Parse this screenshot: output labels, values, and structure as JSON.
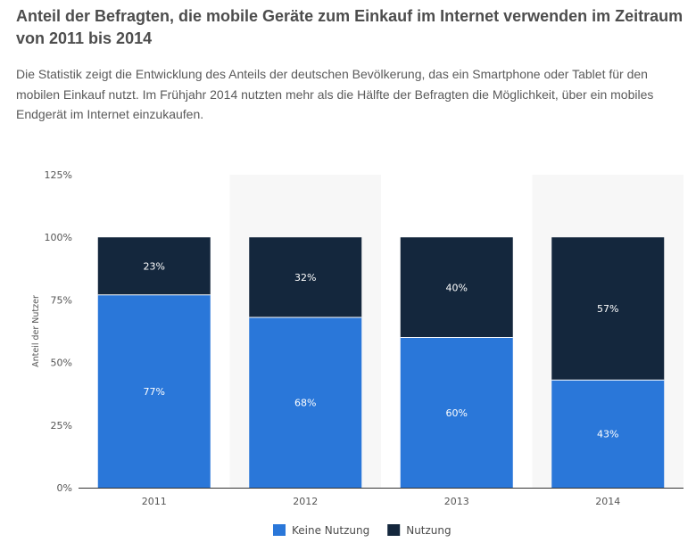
{
  "header": {
    "title": "Anteil der Befragten, die mobile Geräte zum Einkauf im Internet verwenden im Zeitraum von 2011 bis 2014",
    "description": "Die Statistik zeigt die Entwicklung des Anteils der deutschen Bevölkerung, das ein Smartphone oder Tablet für den mobilen Einkauf nutzt. Im Frühjahr 2014 nutzten mehr als die Hälfte der Befragten die Möglichkeit, über ein mobiles Endgerät im Internet einzukaufen."
  },
  "chart_data": {
    "type": "bar",
    "stacked": true,
    "categories": [
      "2011",
      "2012",
      "2013",
      "2014"
    ],
    "series": [
      {
        "name": "Keine Nutzung",
        "values": [
          77,
          68,
          60,
          43
        ],
        "labels": [
          "77%",
          "68%",
          "60%",
          "43%"
        ],
        "color": "#2a77d9"
      },
      {
        "name": "Nutzung",
        "values": [
          23,
          32,
          40,
          57
        ],
        "labels": [
          "23%",
          "32%",
          "40%",
          "57%"
        ],
        "color": "#14273d"
      }
    ],
    "ylabel": "Anteil der Nutzer",
    "ylim": [
      0,
      125
    ],
    "yticks": [
      0,
      25,
      50,
      75,
      100,
      125
    ],
    "ytick_labels": [
      "0%",
      "25%",
      "50%",
      "75%",
      "100%",
      "125%"
    ],
    "legend_position": "bottom",
    "alternating_column_bands": true
  }
}
